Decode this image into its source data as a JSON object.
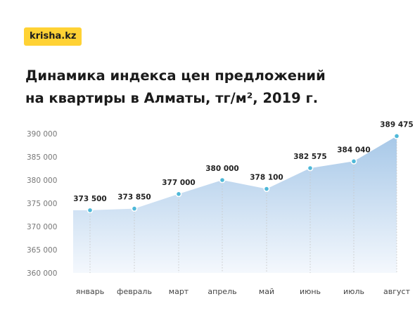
{
  "brand": {
    "logo_text": "krisha.kz",
    "logo_color": "#ffd234"
  },
  "title": {
    "line1": "Динамика индекса цен предложений",
    "line2": "на квартиры в Алматы, тг/м², 2019 г."
  },
  "chart_data": {
    "type": "area",
    "title": "Динамика индекса цен предложений на квартиры в Алматы, тг/м², 2019 г.",
    "xlabel": "",
    "ylabel": "",
    "categories": [
      "январь",
      "февраль",
      "март",
      "апрель",
      "май",
      "июнь",
      "июль",
      "август"
    ],
    "values": [
      373500,
      373850,
      377000,
      380000,
      378100,
      382575,
      384040,
      389475
    ],
    "value_labels": [
      "373 500",
      "373 850",
      "377 000",
      "380 000",
      "378 100",
      "382 575",
      "384 040",
      "389 475"
    ],
    "ylim": [
      360000,
      390000
    ],
    "yticks": [
      390000,
      385000,
      380000,
      375000,
      370000,
      365000,
      360000
    ],
    "ytick_labels": [
      "390 000",
      "385 000",
      "380 000",
      "375 000",
      "370 000",
      "365 000",
      "360 000"
    ],
    "grid": false,
    "legend": "none",
    "colors": {
      "area_top": "#a7c8e8",
      "area_bottom": "#f4f8fd",
      "point": "#4fb8d8",
      "guide": "#c8c8c8"
    }
  }
}
